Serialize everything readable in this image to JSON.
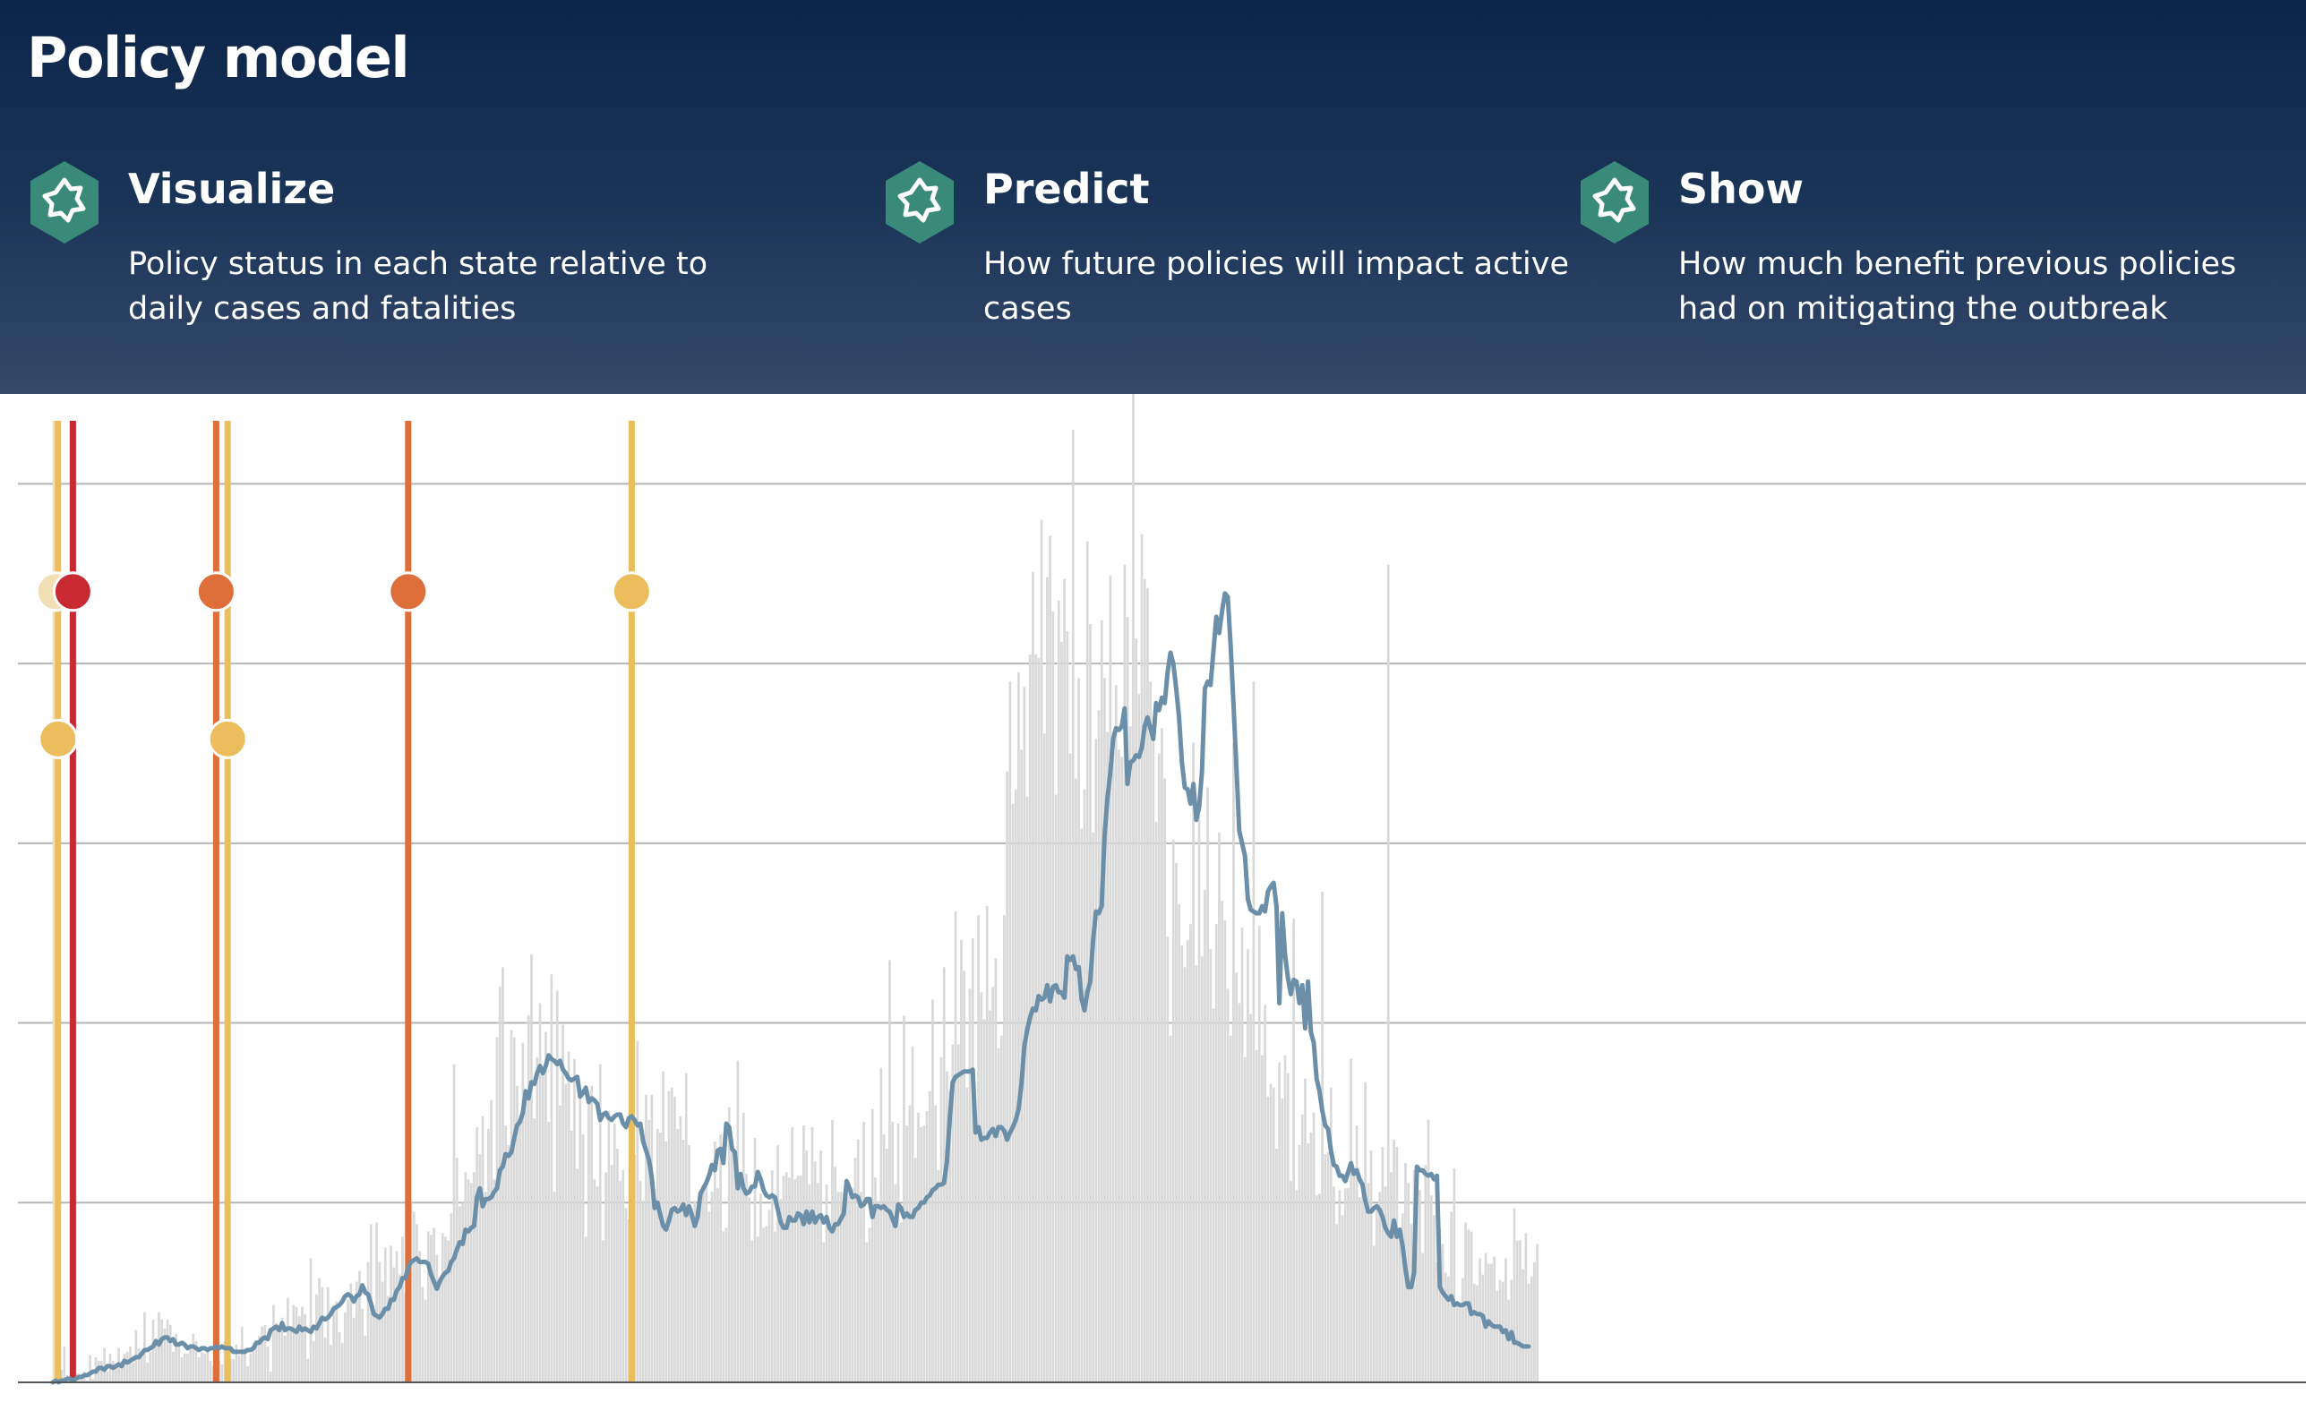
{
  "header": {
    "title": "Policy model",
    "features": [
      {
        "icon": "gear-icon",
        "heading": "Visualize",
        "description": "Policy status in each state relative to daily cases and fatalities"
      },
      {
        "icon": "gear-icon",
        "heading": "Predict",
        "description": "How future policies will impact active cases"
      },
      {
        "icon": "gear-icon",
        "heading": "Show",
        "description": "How much benefit previous policies had on mitigating the outbreak"
      }
    ]
  },
  "colors": {
    "bar": "#d9d9d9",
    "line": "#6b8fa8",
    "grid": "#b5b5b5",
    "policy_light": "#f3dfb5",
    "policy_yellow": "#ebbd5c",
    "policy_orange": "#de6e3a",
    "policy_red": "#c72a32",
    "icon": "#3a8a7a"
  },
  "chart_data": {
    "type": "bar",
    "grid": true,
    "ylim": [
      0,
      5.5
    ],
    "gridlines": [
      1,
      2,
      3,
      4,
      5
    ],
    "x": [
      0,
      500
    ],
    "bar_values": [
      0.01,
      0.15,
      0.12,
      0.07,
      0.2,
      0.04,
      0.02,
      0.22,
      0.05,
      0.05,
      0.02,
      0.06,
      0.01,
      0.15,
      0.02,
      0.14,
      0.12,
      0.12,
      0.19,
      0.06,
      0.16,
      0.12,
      0.08,
      0.19,
      0.12,
      0.16,
      0.17,
      0.2,
      0.11,
      0.29,
      0.19,
      0.15,
      0.39,
      0.11,
      0.17,
      0.35,
      0.23,
      0.39,
      0.35,
      0.3,
      0.35,
      0.32,
      0.17,
      0.27,
      0.22,
      0.14,
      0.16,
      0.16,
      0.21,
      0.27,
      0.23,
      0.14,
      0.17,
      0.16,
      0.19,
      0.12,
      0.09,
      0.14,
      0.12,
      0.1,
      0.23,
      0.2,
      0.13,
      0.13,
      0.21,
      0.15,
      0.31,
      0.19,
      0.09,
      0.16,
      0.2,
      0.23,
      0.26,
      0.31,
      0.32,
      0.2,
      0.06,
      0.43,
      0.33,
      0.31,
      0.36,
      0.26,
      0.47,
      0.29,
      0.43,
      0.42,
      0.37,
      0.42,
      0.38,
      0.13,
      0.69,
      0.23,
      0.49,
      0.58,
      0.53,
      0.25,
      0.53,
      0.21,
      0.43,
      0.45,
      0.28,
      0.22,
      0.39,
      0.46,
      0.55,
      0.36,
      0.56,
      0.62,
      0.41,
      0.26,
      0.67,
      0.88,
      0.41,
      0.89,
      0.67,
      0.56,
      0.75,
      0.48,
      0.76,
      0.64,
      0.73,
      0.6,
      0.81,
      0.5,
      0.83,
      1.0,
      0.95,
      0.88,
      0.73,
      0.53,
      0.46,
      0.84,
      0.82,
      0.86,
      0.71,
      0.58,
      0.83,
      0.81,
      0.79,
      0.94,
      1.77,
      1.25,
      0.98,
      1.0,
      1.17,
      1.13,
      1.11,
      1.17,
      1.42,
      1.27,
      1.48,
      1.06,
      1.41,
      1.57,
      1.13,
      1.92,
      2.2,
      2.31,
      1.43,
      1.32,
      1.96,
      1.92,
      1.65,
      1.46,
      1.89,
      1.62,
      2.04,
      2.38,
      1.47,
      1.81,
      2.11,
      1.73,
      1.95,
      1.45,
      2.27,
      1.06,
      2.18,
      1.54,
      1.99,
      1.66,
      1.84,
      1.4,
      1.8,
      1.19,
      1.59,
      1.38,
      0.81,
      1.6,
      1.65,
      1.13,
      1.09,
      1.77,
      0.79,
      1.17,
      1.51,
      1.21,
      1.44,
      1.3,
      1.12,
      1.18,
      0.97,
      0.91,
      1.46,
      1.27,
      1.9,
      1.12,
      1.01,
      1.6,
      1.46,
      1.6,
      1.04,
      1.41,
      1.39,
      1.73,
      1.34,
      1.62,
      1.64,
      1.59,
      1.41,
      1.48,
      1.35,
      1.72,
      1.32,
      0.97,
      1.01,
      0.91,
      1.0,
      1.08,
      1.09,
      0.95,
      1.06,
      1.34,
      1.08,
      1.38,
      0.84,
      0.86,
      1.53,
      1.34,
      1.22,
      1.79,
      1.1,
      1.5,
      1.16,
      1.03,
      0.79,
      1.36,
      0.81,
      1.05,
      0.86,
      0.87,
      0.96,
      1.18,
      0.84,
      1.32,
      1.02,
      1.15,
      1.17,
      1.14,
      1.42,
      1.13,
      1.15,
      1.15,
      1.43,
      1.29,
      1.1,
      1.42,
      1.23,
      1.11,
      1.29,
      0.78,
      1.1,
      0.87,
      1.46,
      1.2,
      1.06,
      1.06,
      1.06,
      1.12,
      1.08,
      1.08,
      1.25,
      1.35,
      1.06,
      1.45,
      0.78,
      0.86,
      1.52,
      1.14,
      1.01,
      1.75,
      1.38,
      1.3,
      2.35,
      1.45,
      1.1,
      1.44,
      0.89,
      2.04,
      1.43,
      1.54,
      1.87,
      1.25,
      1.5,
      1.42,
      1.43,
      1.51,
      1.62,
      2.13,
      1.54,
      1.18,
      1.81,
      2.31,
      1.73,
      1.62,
      1.88,
      2.62,
      1.88,
      2.46,
      2.29,
      1.64,
      2.19,
      2.47,
      1.43,
      2.6,
      2.17,
      2.02,
      2.65,
      2.07,
      2.2,
      2.36,
      1.86,
      1.93,
      2.6,
      3.4,
      3.9,
      3.22,
      3.3,
      3.95,
      3.52,
      3.87,
      3.26,
      4.05,
      4.51,
      4.05,
      4.03,
      4.8,
      3.61,
      4.48,
      4.71,
      4.29,
      3.27,
      4.35,
      4.12,
      4.47,
      4.18,
      3.5,
      5.3,
      3.36,
      3.92,
      3.08,
      3.3,
      4.68,
      4.22,
      3.06,
      3.58,
      3.74,
      4.24,
      3.92,
      3.62,
      4.49,
      3.62,
      3.88,
      3.52,
      3.48,
      4.55,
      4.26,
      3.65,
      5.53,
      4.14,
      3.83,
      4.72,
      4.47,
      4.42,
      3.9,
      3.62,
      3.12,
      3.5,
      3.64,
      3.36,
      2.48,
      1.93,
      3.02,
      2.89,
      2.66,
      2.43,
      2.31,
      2.46,
      2.55,
      3.56,
      2.32,
      3.16,
      2.37,
      2.74,
      3.31,
      2.41,
      2.08,
      2.55,
      3.06,
      2.68,
      2.57,
      2.19,
      1.93,
      3.56,
      2.28,
      2.11,
      2.53,
      1.81,
      2.41,
      2.05,
      3.9,
      1.85,
      2.54,
      1.82,
      2.1,
      1.59,
      1.66,
      1.64,
      1.3,
      1.78,
      1.58,
      1.82,
      1.72,
      1.12,
      2.58,
      1.07,
      1.32,
      1.49,
      1.69,
      1.33,
      1.39,
      1.5,
      1.04,
      1.05,
      2.73,
      1.27,
      1.28,
      1.64,
      1.09,
      0.88,
      1.07,
      0.93,
      1.08,
      1.08,
      1.8,
      1.15,
      1.43,
      1.03,
      1.1,
      1.67,
      1.11,
      1.29,
      0.76,
      0.99,
      1.06,
      1.31,
      1.09,
      4.55,
      1.17,
      1.35,
      1.31,
      0.82,
      0.94,
      1.22,
      1.11,
      0.88,
      1.18,
      1.11,
      1.07,
      0.72,
      1.21,
      1.46,
      1.04,
      0.93,
      0.67,
      0.86,
      0.77,
      0.61,
      0.59,
      0.95,
      1.19,
      0.45,
      0.44,
      0.58,
      0.89,
      0.85,
      0.84,
      0.55,
      0.54,
      0.69,
      0.6,
      0.72,
      0.66,
      0.66,
      0.7,
      0.51,
      0.57,
      0.56,
      0.69,
      0.46,
      0.57,
      0.97,
      0.79,
      0.79,
      0.63,
      0.83,
      0.55,
      0.59,
      0.67,
      0.77
    ],
    "line_values": [
      0.0,
      0.01,
      0.0,
      0.01,
      0.01,
      0.02,
      0.02,
      0.01,
      0.02,
      0.03,
      0.03,
      0.04,
      0.04,
      0.05,
      0.06,
      0.06,
      0.08,
      0.08,
      0.07,
      0.09,
      0.09,
      0.08,
      0.09,
      0.1,
      0.09,
      0.12,
      0.11,
      0.12,
      0.13,
      0.14,
      0.14,
      0.16,
      0.18,
      0.18,
      0.19,
      0.2,
      0.23,
      0.21,
      0.24,
      0.25,
      0.25,
      0.23,
      0.24,
      0.21,
      0.21,
      0.22,
      0.21,
      0.19,
      0.2,
      0.2,
      0.19,
      0.18,
      0.19,
      0.19,
      0.18,
      0.19,
      0.19,
      0.2,
      0.19,
      0.2,
      0.19,
      0.19,
      0.19,
      0.17,
      0.17,
      0.17,
      0.17,
      0.17,
      0.18,
      0.18,
      0.19,
      0.22,
      0.22,
      0.24,
      0.25,
      0.24,
      0.29,
      0.3,
      0.31,
      0.29,
      0.33,
      0.29,
      0.3,
      0.3,
      0.29,
      0.28,
      0.31,
      0.29,
      0.3,
      0.29,
      0.28,
      0.31,
      0.3,
      0.33,
      0.36,
      0.35,
      0.36,
      0.38,
      0.41,
      0.42,
      0.43,
      0.45,
      0.48,
      0.49,
      0.48,
      0.45,
      0.48,
      0.49,
      0.54,
      0.5,
      0.49,
      0.44,
      0.38,
      0.37,
      0.36,
      0.38,
      0.41,
      0.41,
      0.46,
      0.46,
      0.51,
      0.53,
      0.58,
      0.58,
      0.64,
      0.67,
      0.68,
      0.69,
      0.67,
      0.67,
      0.67,
      0.66,
      0.6,
      0.56,
      0.52,
      0.56,
      0.59,
      0.61,
      0.62,
      0.67,
      0.69,
      0.74,
      0.78,
      0.77,
      0.85,
      0.84,
      0.86,
      0.87,
      1.03,
      1.08,
      0.98,
      1.02,
      1.02,
      1.03,
      1.06,
      1.08,
      1.18,
      1.2,
      1.27,
      1.26,
      1.28,
      1.36,
      1.43,
      1.45,
      1.5,
      1.62,
      1.58,
      1.67,
      1.66,
      1.72,
      1.76,
      1.72,
      1.76,
      1.82,
      1.8,
      1.79,
      1.77,
      1.79,
      1.74,
      1.72,
      1.69,
      1.68,
      1.69,
      1.7,
      1.59,
      1.61,
      1.64,
      1.56,
      1.58,
      1.57,
      1.55,
      1.46,
      1.49,
      1.5,
      1.47,
      1.46,
      1.48,
      1.49,
      1.49,
      1.44,
      1.42,
      1.47,
      1.48,
      1.46,
      1.43,
      1.44,
      1.34,
      1.29,
      1.24,
      1.14,
      0.97,
      1.0,
      0.93,
      0.87,
      0.85,
      0.9,
      0.96,
      0.97,
      0.95,
      0.96,
      0.99,
      0.93,
      0.98,
      0.93,
      0.87,
      0.92,
      1.05,
      1.08,
      1.11,
      1.15,
      1.21,
      1.18,
      1.29,
      1.3,
      1.22,
      1.44,
      1.42,
      1.3,
      1.28,
      1.08,
      1.16,
      1.08,
      1.05,
      1.06,
      1.09,
      1.09,
      1.17,
      1.13,
      1.07,
      1.04,
      1.03,
      1.04,
      1.03,
      0.96,
      0.89,
      0.86,
      0.86,
      0.92,
      0.9,
      0.9,
      0.94,
      0.93,
      0.88,
      0.95,
      0.89,
      0.95,
      0.89,
      0.92,
      0.93,
      0.89,
      0.92,
      0.86,
      0.84,
      0.88,
      0.88,
      0.91,
      0.94,
      1.12,
      1.08,
      1.03,
      1.04,
      1.03,
      0.98,
      0.99,
      1.02,
      1.02,
      0.92,
      0.98,
      0.98,
      0.97,
      0.98,
      0.96,
      0.95,
      0.91,
      0.87,
      0.99,
      0.97,
      0.92,
      0.94,
      0.92,
      0.92,
      0.96,
      0.97,
      1.0,
      1.0,
      1.03,
      1.04,
      1.07,
      1.08,
      1.1,
      1.1,
      1.11,
      1.23,
      1.47,
      1.67,
      1.7,
      1.71,
      1.72,
      1.73,
      1.73,
      1.73,
      1.74,
      1.39,
      1.42,
      1.35,
      1.36,
      1.36,
      1.39,
      1.41,
      1.37,
      1.42,
      1.42,
      1.4,
      1.35,
      1.39,
      1.42,
      1.46,
      1.52,
      1.66,
      1.87,
      1.96,
      2.03,
      2.08,
      2.07,
      2.15,
      2.13,
      2.14,
      2.21,
      2.12,
      2.2,
      2.21,
      2.17,
      2.17,
      2.14,
      2.37,
      2.35,
      2.37,
      2.3,
      2.31,
      2.13,
      2.07,
      2.17,
      2.23,
      2.46,
      2.62,
      2.61,
      2.65,
      3.04,
      3.25,
      3.39,
      3.58,
      3.64,
      3.63,
      3.65,
      3.75,
      3.33,
      3.45,
      3.46,
      3.49,
      3.48,
      3.53,
      3.65,
      3.7,
      3.64,
      3.58,
      3.78,
      3.74,
      3.81,
      3.78,
      3.95,
      4.06,
      4.0,
      3.86,
      3.7,
      3.45,
      3.31,
      3.3,
      3.22,
      3.33,
      3.13,
      3.2,
      3.4,
      3.86,
      3.9,
      3.88,
      4.07,
      4.26,
      4.17,
      4.29,
      4.39,
      4.37,
      4.1,
      3.77,
      3.43,
      3.07,
      3.0,
      2.93,
      2.69,
      2.63,
      2.62,
      2.61,
      2.61,
      2.65,
      2.62,
      2.73,
      2.76,
      2.78,
      2.65,
      2.11,
      2.61,
      2.38,
      2.25,
      2.16,
      2.24,
      2.23,
      2.11,
      2.21,
      1.97,
      2.23,
      1.95,
      1.89,
      1.69,
      1.62,
      1.51,
      1.43,
      1.41,
      1.29,
      1.21,
      1.2,
      1.15,
      1.15,
      1.12,
      1.17,
      1.22,
      1.16,
      1.18,
      1.13,
      1.1,
      1.01,
      0.95,
      0.95,
      0.97,
      0.98,
      0.96,
      0.92,
      0.86,
      0.83,
      0.81,
      0.9,
      0.81,
      0.85,
      0.76,
      0.63,
      0.53,
      0.53,
      0.61,
      1.2,
      1.18,
      1.18,
      1.16,
      1.15,
      1.16,
      1.13,
      1.15,
      0.53,
      0.5,
      0.48,
      0.46,
      0.48,
      0.43,
      0.44,
      0.43,
      0.43,
      0.44,
      0.44,
      0.38,
      0.39,
      0.38,
      0.38,
      0.37,
      0.31,
      0.34,
      0.32,
      0.31,
      0.31,
      0.31,
      0.28,
      0.29,
      0.24,
      0.28,
      0.22,
      0.22,
      0.21,
      0.2,
      0.2,
      0.2
    ],
    "policy_markers": [
      {
        "x": 1,
        "color": "#f3dfb5",
        "dot_y": 4.4
      },
      {
        "x": 1.8,
        "color": "#ebbd5c",
        "dot_y": 3.58
      },
      {
        "x": 7,
        "color": "#c72a32",
        "dot_y": 4.4
      },
      {
        "x": 57,
        "color": "#de6e3a",
        "dot_y": 4.4
      },
      {
        "x": 61,
        "color": "#ebbd5c",
        "dot_y": 3.58
      },
      {
        "x": 124,
        "color": "#de6e3a",
        "dot_y": 4.4
      },
      {
        "x": 202,
        "color": "#ebbd5c",
        "dot_y": 4.4
      }
    ]
  }
}
